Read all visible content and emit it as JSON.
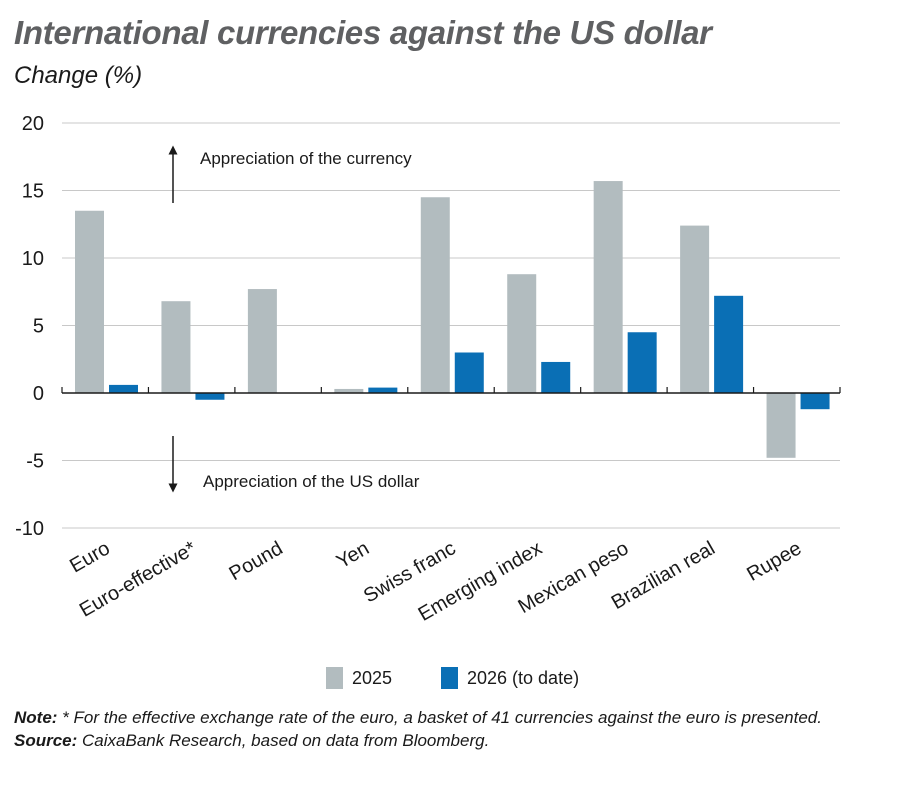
{
  "title": "International currencies against the US dollar",
  "subtitle": "Change (%)",
  "chart_data": {
    "type": "bar",
    "categories": [
      "Euro",
      "Euro-effective*",
      "Pound",
      "Yen",
      "Swiss franc",
      "Emerging index",
      "Mexican peso",
      "Brazilian real",
      "Rupee"
    ],
    "series": [
      {
        "name": "2025",
        "color": "#b2bcbf",
        "values": [
          13.5,
          6.8,
          7.7,
          0.3,
          14.5,
          8.8,
          15.7,
          12.4,
          -4.8
        ]
      },
      {
        "name": "2026 (to date)",
        "color": "#0a6fb5",
        "values": [
          0.6,
          -0.5,
          0.0,
          0.4,
          3.0,
          2.3,
          4.5,
          7.2,
          -1.2
        ]
      }
    ],
    "ylim": [
      -10,
      20
    ],
    "yticks": [
      "-10",
      "-5",
      "0",
      "5",
      "10",
      "15",
      "20"
    ],
    "grid": true,
    "legend_position": "bottom",
    "annotations": {
      "up": "Appreciation of the currency",
      "down": "Appreciation of the US dollar"
    }
  },
  "notes": {
    "note_label": "Note:",
    "note_text": " * For the effective exchange rate of the euro, a basket of 41 currencies against the euro is presented.",
    "source_label": "Source:",
    "source_text": " CaixaBank Research, based on data from Bloomberg."
  }
}
